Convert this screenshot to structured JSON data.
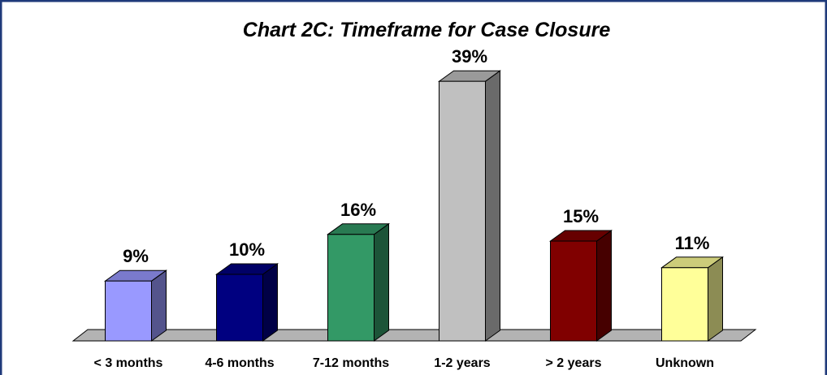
{
  "chart_data": {
    "type": "bar3d",
    "title": "Chart 2C: Timeframe for Case Closure",
    "categories": [
      "< 3 months",
      "4-6 months",
      "7-12 months",
      "1-2 years",
      "> 2 years",
      "Unknown"
    ],
    "values": [
      9,
      10,
      16,
      39,
      15,
      11
    ],
    "value_labels": [
      "9%",
      "10%",
      "16%",
      "39%",
      "15%",
      "11%"
    ],
    "colors": [
      "#9999ff",
      "#000080",
      "#339966",
      "#c0c0c0",
      "#800000",
      "#ffff99"
    ]
  }
}
